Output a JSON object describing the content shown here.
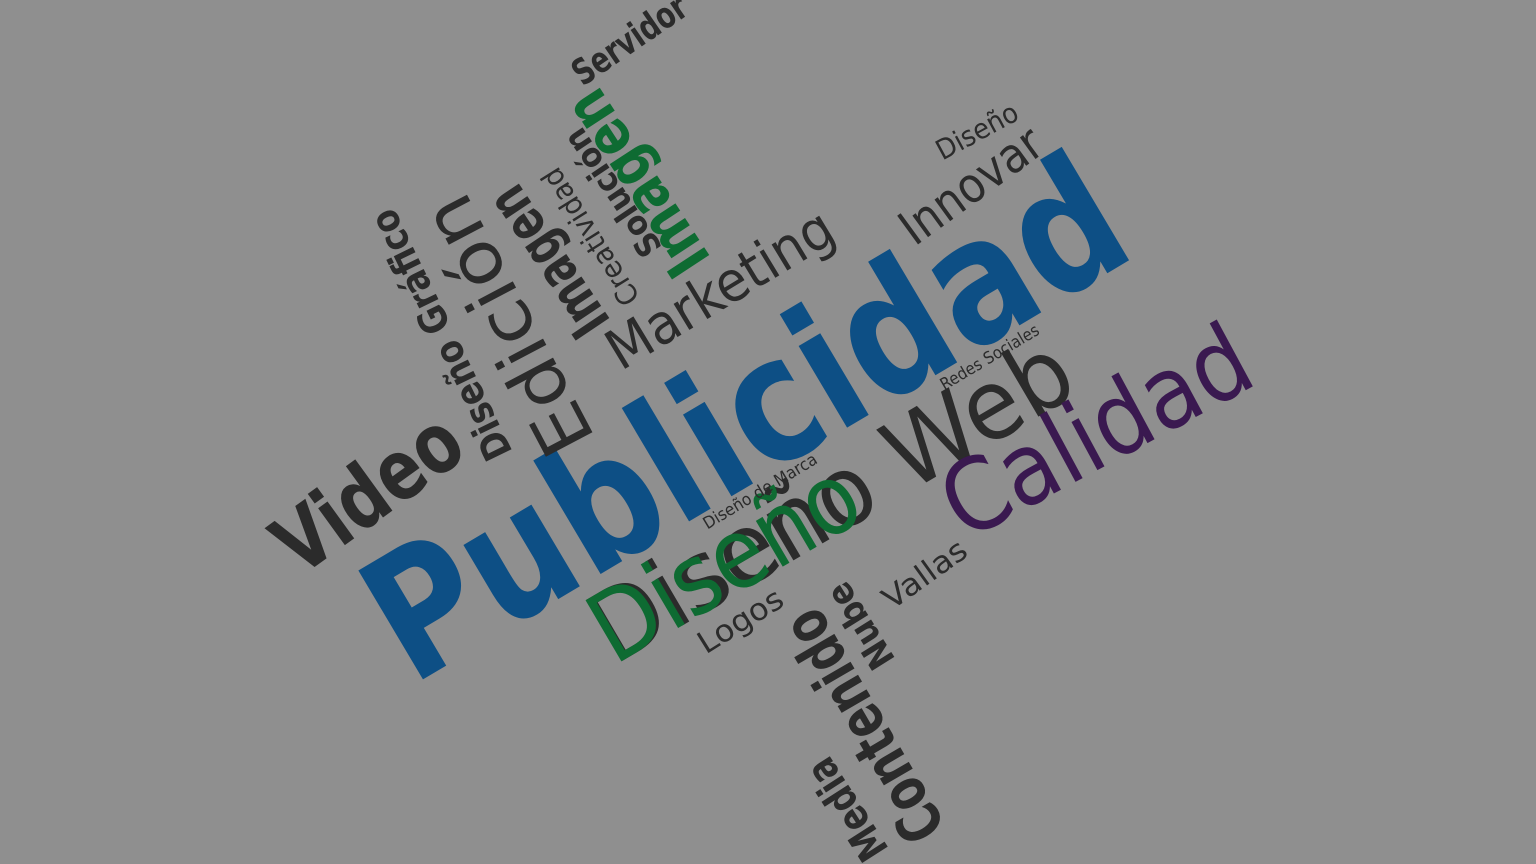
{
  "colors": {
    "background": "#8f8f8f",
    "dark": "#2b2b2b",
    "blue": "#0d4f85",
    "green": "#0e6b32",
    "purple": "#3a1950"
  },
  "words": [
    {
      "id": "publicidad",
      "text": "Publicidad",
      "color": "blue"
    },
    {
      "id": "diseno-web",
      "text": "Diseño Web",
      "color": "dark"
    },
    {
      "id": "diseno-green",
      "text": "Diseño",
      "color": "green"
    },
    {
      "id": "calidad",
      "text": "Calidad",
      "color": "purple"
    },
    {
      "id": "video",
      "text": "Video",
      "color": "dark"
    },
    {
      "id": "marketing",
      "text": "Marketing",
      "color": "dark"
    },
    {
      "id": "innovar",
      "text": "Innovar",
      "color": "dark"
    },
    {
      "id": "diseno-small",
      "text": "Diseño",
      "color": "dark"
    },
    {
      "id": "redes-sociales",
      "text": "Redes Sociales",
      "color": "dark"
    },
    {
      "id": "diseno-de-marca",
      "text": "Diseño de Marca",
      "color": "dark"
    },
    {
      "id": "logos",
      "text": "Logos",
      "color": "dark"
    },
    {
      "id": "vallas",
      "text": "Vallas",
      "color": "dark"
    },
    {
      "id": "servidor",
      "text": "Servidor",
      "color": "dark"
    },
    {
      "id": "diseno-grafico",
      "text": "Diseño Gráfico",
      "color": "dark"
    },
    {
      "id": "edicion",
      "text": "Edición",
      "color": "dark"
    },
    {
      "id": "imagen-dark",
      "text": "Imagen",
      "color": "dark"
    },
    {
      "id": "creatividad",
      "text": "Creatividad",
      "color": "dark"
    },
    {
      "id": "solucion",
      "text": "Solución",
      "color": "dark"
    },
    {
      "id": "imagen-green",
      "text": "Imagen",
      "color": "green"
    },
    {
      "id": "contenido",
      "text": "Contenido",
      "color": "dark"
    },
    {
      "id": "nube",
      "text": "Nube",
      "color": "dark"
    },
    {
      "id": "media",
      "text": "Media",
      "color": "dark"
    }
  ]
}
